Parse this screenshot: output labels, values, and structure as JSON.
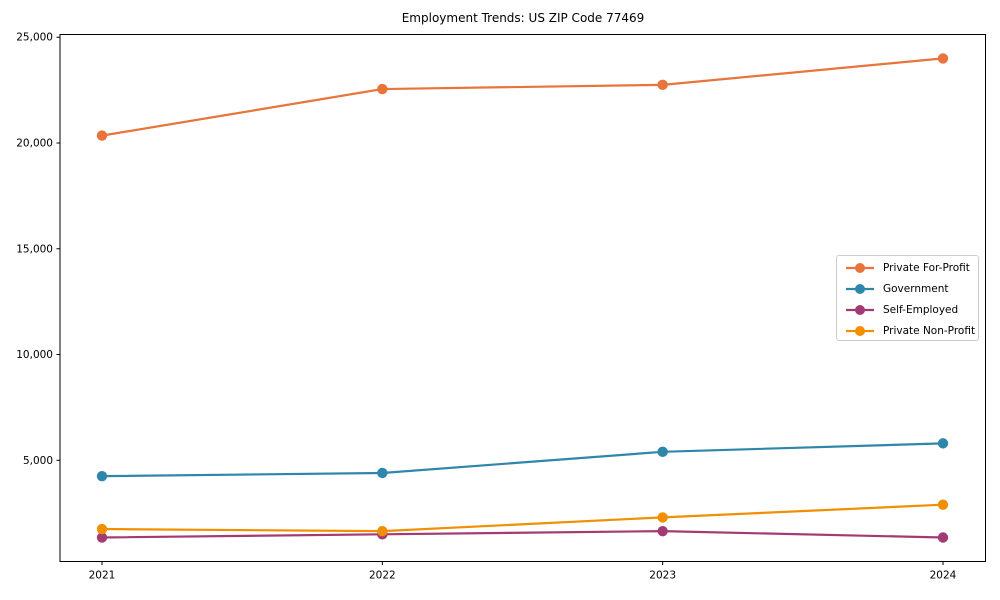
{
  "title": "Employment Trends: US ZIP Code 77469",
  "chart_data": {
    "type": "line",
    "title": "Employment Trends: US ZIP Code 77469",
    "xlabel": "",
    "ylabel": "",
    "categories": [
      "2021",
      "2022",
      "2023",
      "2024"
    ],
    "series": [
      {
        "name": "Private For-Profit",
        "color": "#E8743B",
        "values": [
          20350,
          22550,
          22750,
          24000
        ]
      },
      {
        "name": "Government",
        "color": "#2E86AB",
        "values": [
          4250,
          4400,
          5400,
          5800
        ]
      },
      {
        "name": "Self-Employed",
        "color": "#A23B72",
        "values": [
          1350,
          1500,
          1650,
          1350
        ]
      },
      {
        "name": "Private Non-Profit",
        "color": "#F18F01",
        "values": [
          1750,
          1650,
          2300,
          2900
        ]
      }
    ],
    "y_ticks": [
      5000,
      10000,
      15000,
      20000,
      25000
    ],
    "y_tick_labels": [
      "5,000",
      "10,000",
      "15,000",
      "20,000",
      "25,000"
    ],
    "ylim": [
      215,
      25130
    ],
    "grid": false,
    "legend_position": "center-right",
    "axis_color": "#000000",
    "background_color": "#ffffff"
  }
}
